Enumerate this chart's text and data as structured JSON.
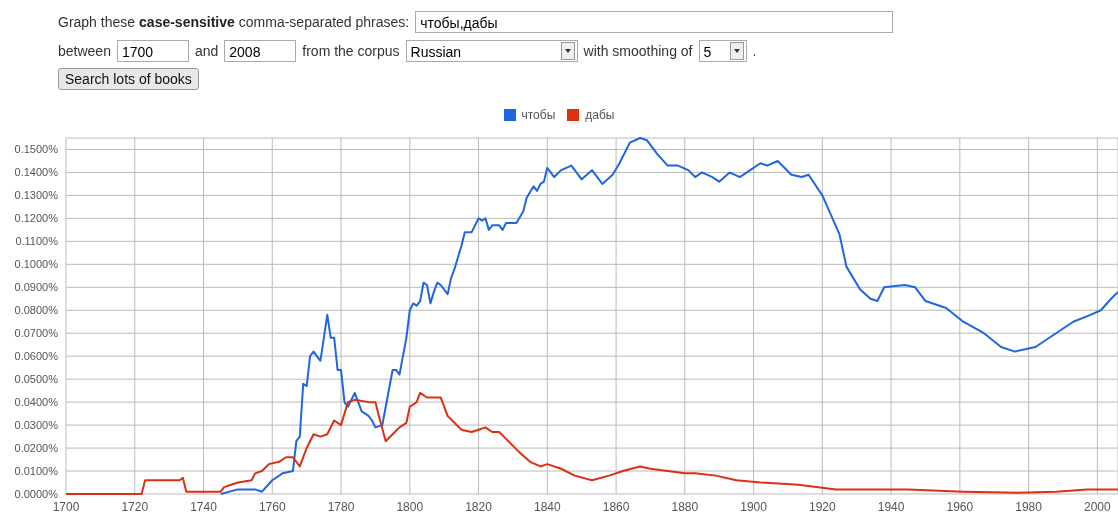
{
  "chart_data": {
    "type": "line",
    "annotations": [
      "Graph these",
      "case-sensitive",
      "comma-separated phrases:",
      "чтобы,дабы",
      "between",
      "1700",
      "and",
      "2008",
      "from the corpus",
      "Russian",
      "with smoothing of",
      "5",
      ".",
      "Search lots of books"
    ],
    "series": [
      {
        "name": "чтобы",
        "color": "#1f66e0",
        "x": [
          1745,
          1750,
          1755,
          1757,
          1760,
          1763,
          1766,
          1767,
          1768,
          1769,
          1770,
          1771,
          1772,
          1774,
          1775,
          1776,
          1777,
          1778,
          1779,
          1780,
          1781,
          1782,
          1784,
          1786,
          1788,
          1789,
          1790,
          1792,
          1793,
          1795,
          1796,
          1797,
          1799,
          1800,
          1801,
          1802,
          1803,
          1804,
          1805,
          1806,
          1807,
          1808,
          1809,
          1811,
          1812,
          1813,
          1815,
          1816,
          1818,
          1820,
          1821,
          1822,
          1823,
          1824,
          1826,
          1827,
          1828,
          1830,
          1831,
          1833,
          1834,
          1836,
          1837,
          1838,
          1839,
          1840,
          1842,
          1844,
          1847,
          1850,
          1853,
          1856,
          1859,
          1861,
          1864,
          1867,
          1869,
          1872,
          1875,
          1878,
          1881,
          1883,
          1885,
          1888,
          1890,
          1893,
          1896,
          1899,
          1902,
          1904,
          1907,
          1911,
          1914,
          1916,
          1920,
          1925,
          1927,
          1931,
          1934,
          1936,
          1938,
          1944,
          1947,
          1950,
          1956,
          1961,
          1967,
          1972,
          1976,
          1982,
          1987,
          1993,
          1998,
          2001,
          2004,
          2006
        ],
        "values": [
          0,
          0.002,
          0.002,
          0.001,
          0.006,
          0.009,
          0.01,
          0.023,
          0.025,
          0.048,
          0.047,
          0.06,
          0.062,
          0.058,
          0.068,
          0.078,
          0.068,
          0.068,
          0.054,
          0.054,
          0.04,
          0.038,
          0.044,
          0.036,
          0.034,
          0.032,
          0.029,
          0.03,
          0.038,
          0.054,
          0.054,
          0.052,
          0.068,
          0.08,
          0.083,
          0.082,
          0.084,
          0.092,
          0.091,
          0.083,
          0.088,
          0.092,
          0.091,
          0.087,
          0.094,
          0.098,
          0.108,
          0.114,
          0.114,
          0.12,
          0.119,
          0.12,
          0.115,
          0.117,
          0.117,
          0.115,
          0.118,
          0.118,
          0.118,
          0.123,
          0.129,
          0.134,
          0.132,
          0.135,
          0.136,
          0.142,
          0.138,
          0.141,
          0.143,
          0.137,
          0.141,
          0.135,
          0.139,
          0.144,
          0.153,
          0.155,
          0.154,
          0.148,
          0.143,
          0.143,
          0.141,
          0.138,
          0.14,
          0.138,
          0.136,
          0.14,
          0.138,
          0.141,
          0.144,
          0.143,
          0.145,
          0.139,
          0.138,
          0.139,
          0.13,
          0.113,
          0.099,
          0.089,
          0.085,
          0.084,
          0.09,
          0.091,
          0.09,
          0.084,
          0.081,
          0.075,
          0.07,
          0.064,
          0.062,
          0.064,
          0.069,
          0.075,
          0.078,
          0.08,
          0.085,
          0.088
        ]
      },
      {
        "name": "дабы",
        "color": "#dc3012",
        "x": [
          1700,
          1722,
          1723,
          1733,
          1734,
          1735,
          1745,
          1746,
          1748,
          1750,
          1754,
          1755,
          1757,
          1759,
          1762,
          1764,
          1766,
          1768,
          1770,
          1772,
          1774,
          1776,
          1778,
          1780,
          1782,
          1784,
          1788,
          1790,
          1791,
          1793,
          1795,
          1797,
          1799,
          1800,
          1802,
          1803,
          1805,
          1809,
          1811,
          1813,
          1815,
          1818,
          1820,
          1822,
          1824,
          1826,
          1828,
          1832,
          1835,
          1838,
          1840,
          1844,
          1848,
          1853,
          1858,
          1862,
          1867,
          1870,
          1875,
          1880,
          1883,
          1889,
          1895,
          1902,
          1913,
          1924,
          1931,
          1945,
          1961,
          1977,
          1988,
          1997,
          2006
        ],
        "values": [
          0,
          0,
          0.006,
          0.006,
          0.007,
          0.001,
          0.001,
          0.003,
          0.004,
          0.005,
          0.006,
          0.009,
          0.01,
          0.013,
          0.014,
          0.016,
          0.016,
          0.012,
          0.02,
          0.026,
          0.025,
          0.026,
          0.032,
          0.03,
          0.04,
          0.041,
          0.04,
          0.04,
          0.034,
          0.023,
          0.026,
          0.029,
          0.031,
          0.038,
          0.04,
          0.044,
          0.042,
          0.042,
          0.034,
          0.031,
          0.028,
          0.027,
          0.028,
          0.029,
          0.027,
          0.027,
          0.024,
          0.018,
          0.014,
          0.012,
          0.013,
          0.011,
          0.008,
          0.006,
          0.008,
          0.01,
          0.012,
          0.011,
          0.01,
          0.009,
          0.009,
          0.008,
          0.006,
          0.005,
          0.004,
          0.002,
          0.002,
          0.002,
          0.001,
          0.0005,
          0.001,
          0.002,
          0.002
        ]
      }
    ],
    "xlim": [
      1700,
      2006
    ],
    "xticks": [
      1700,
      1720,
      1740,
      1760,
      1780,
      1800,
      1820,
      1840,
      1860,
      1880,
      1900,
      1920,
      1940,
      1960,
      1980,
      2000
    ],
    "ylim": [
      0,
      0.155
    ],
    "yticks": [
      {
        "value": 0,
        "label": "0.0000%"
      },
      {
        "value": 0.01,
        "label": "0.0100%"
      },
      {
        "value": 0.02,
        "label": "0.0200%"
      },
      {
        "value": 0.03,
        "label": "0.0300%"
      },
      {
        "value": 0.04,
        "label": "0.0400%"
      },
      {
        "value": 0.05,
        "label": "0.0500%"
      },
      {
        "value": 0.06,
        "label": "0.0600%"
      },
      {
        "value": 0.07,
        "label": "0.0700%"
      },
      {
        "value": 0.08,
        "label": "0.0800%"
      },
      {
        "value": 0.09,
        "label": "0.0900%"
      },
      {
        "value": 0.1,
        "label": "0.1000%"
      },
      {
        "value": 0.11,
        "label": "0.1100%"
      },
      {
        "value": 0.12,
        "label": "0.1200%"
      },
      {
        "value": 0.13,
        "label": "0.1300%"
      },
      {
        "value": 0.14,
        "label": "0.1400%"
      },
      {
        "value": 0.15,
        "label": "0.1500%"
      }
    ],
    "grid": true,
    "legend": "top",
    "marker": "none",
    "line_style": "solid"
  }
}
